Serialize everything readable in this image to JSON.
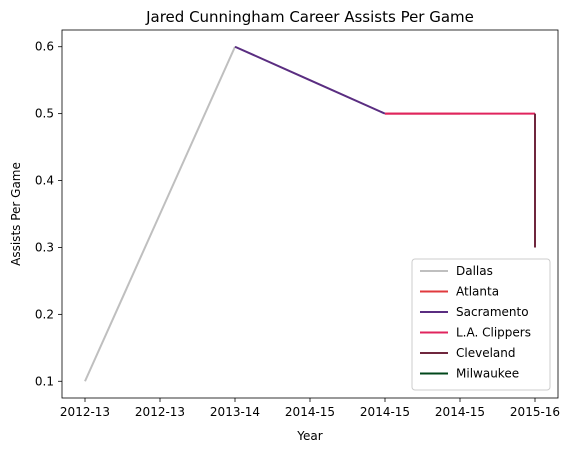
{
  "chart_data": {
    "type": "line",
    "title": "Jared Cunningham Career Assists Per Game",
    "xlabel": "Year",
    "ylabel": "Assists Per Game",
    "x_tick_labels": [
      "2012-13",
      "2012-13",
      "2013-14",
      "2014-15",
      "2014-15",
      "2014-15",
      "2015-16"
    ],
    "ylim": [
      0.075,
      0.625
    ],
    "y_ticks": [
      0.1,
      0.2,
      0.3,
      0.4,
      0.5,
      0.6
    ],
    "y_tick_labels": [
      "0.1",
      "0.2",
      "0.3",
      "0.4",
      "0.5",
      "0.6"
    ],
    "grid": false,
    "legend_position": "bottom-right",
    "series": [
      {
        "name": "Dallas",
        "color": "#bfbfbf",
        "points": [
          [
            0,
            0.1
          ],
          [
            1,
            0.35
          ],
          [
            2,
            0.6
          ]
        ]
      },
      {
        "name": "Atlanta",
        "color": "#e03a3e",
        "points": [
          [
            4,
            0.5
          ],
          [
            5,
            0.5
          ]
        ]
      },
      {
        "name": "Sacramento",
        "color": "#5a2d81",
        "points": [
          [
            2,
            0.6
          ],
          [
            3,
            0.55
          ],
          [
            4,
            0.5
          ]
        ]
      },
      {
        "name": "L.A. Clippers",
        "color": "#e0245e",
        "points": [
          [
            4,
            0.5
          ],
          [
            5,
            0.5
          ],
          [
            6,
            0.5
          ]
        ]
      },
      {
        "name": "Cleveland",
        "color": "#6f263d",
        "points": [
          [
            6,
            0.5
          ],
          [
            6,
            0.3
          ]
        ]
      },
      {
        "name": "Milwaukee",
        "color": "#00471b",
        "points": []
      }
    ]
  }
}
